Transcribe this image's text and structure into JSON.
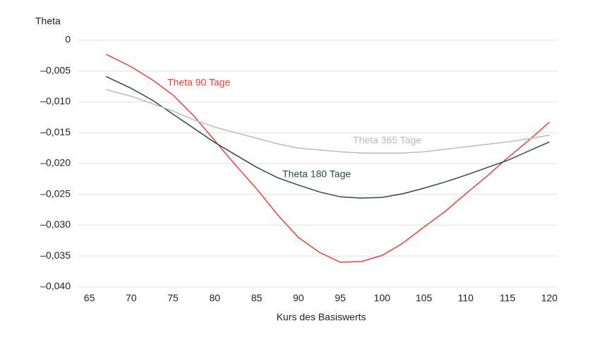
{
  "chart_data": {
    "type": "line",
    "y_axis_label": "Theta",
    "x_axis_label": "Kurs des Basiswerts",
    "x": [
      67,
      70,
      72.5,
      75,
      77.5,
      80,
      82.5,
      85,
      87.5,
      90,
      92.5,
      95,
      97.5,
      100,
      102.5,
      105,
      107.5,
      110,
      112.5,
      115,
      117.5,
      120
    ],
    "series": [
      {
        "name": "Theta 90 Tage",
        "color": "#e8413c",
        "values": [
          -0.0023,
          -0.0043,
          -0.0064,
          -0.0089,
          -0.0123,
          -0.0163,
          -0.0203,
          -0.0241,
          -0.0283,
          -0.032,
          -0.0344,
          -0.036,
          -0.0359,
          -0.0349,
          -0.0329,
          -0.0303,
          -0.0278,
          -0.0249,
          -0.0221,
          -0.0191,
          -0.0163,
          -0.0133
        ]
      },
      {
        "name": "Theta 180 Tage",
        "color": "#2e4a47",
        "values": [
          -0.0059,
          -0.0078,
          -0.0097,
          -0.012,
          -0.0143,
          -0.0166,
          -0.0186,
          -0.0206,
          -0.0223,
          -0.0235,
          -0.0246,
          -0.0254,
          -0.0256,
          -0.0255,
          -0.0249,
          -0.024,
          -0.023,
          -0.0219,
          -0.0207,
          -0.0195,
          -0.018,
          -0.0165
        ]
      },
      {
        "name": "Theta 365 Tage",
        "color": "#bbbbbb",
        "values": [
          -0.008,
          -0.0091,
          -0.0103,
          -0.0115,
          -0.0129,
          -0.0141,
          -0.015,
          -0.0159,
          -0.0168,
          -0.0175,
          -0.0178,
          -0.0181,
          -0.0183,
          -0.0183,
          -0.0183,
          -0.0181,
          -0.0177,
          -0.0173,
          -0.0169,
          -0.0165,
          -0.016,
          -0.0154
        ]
      }
    ],
    "xlim": [
      63.6,
      121
    ],
    "xticks": [
      65,
      70,
      75,
      80,
      85,
      90,
      95,
      100,
      105,
      110,
      115,
      120
    ],
    "ylim": [
      -0.04,
      0
    ],
    "yticks": [
      0,
      {
        "value": -0.005,
        "label": "–0,005"
      },
      {
        "value": -0.01,
        "label": "–0,010"
      },
      {
        "value": -0.015,
        "label": "–0,015"
      },
      {
        "value": -0.02,
        "label": "–0,020"
      },
      {
        "value": -0.025,
        "label": "–0,025"
      },
      {
        "value": -0.03,
        "label": "–0,030"
      },
      {
        "value": -0.035,
        "label": "–0,035"
      },
      {
        "value": -0.04,
        "label": "–0,040"
      }
    ],
    "grid": true
  }
}
